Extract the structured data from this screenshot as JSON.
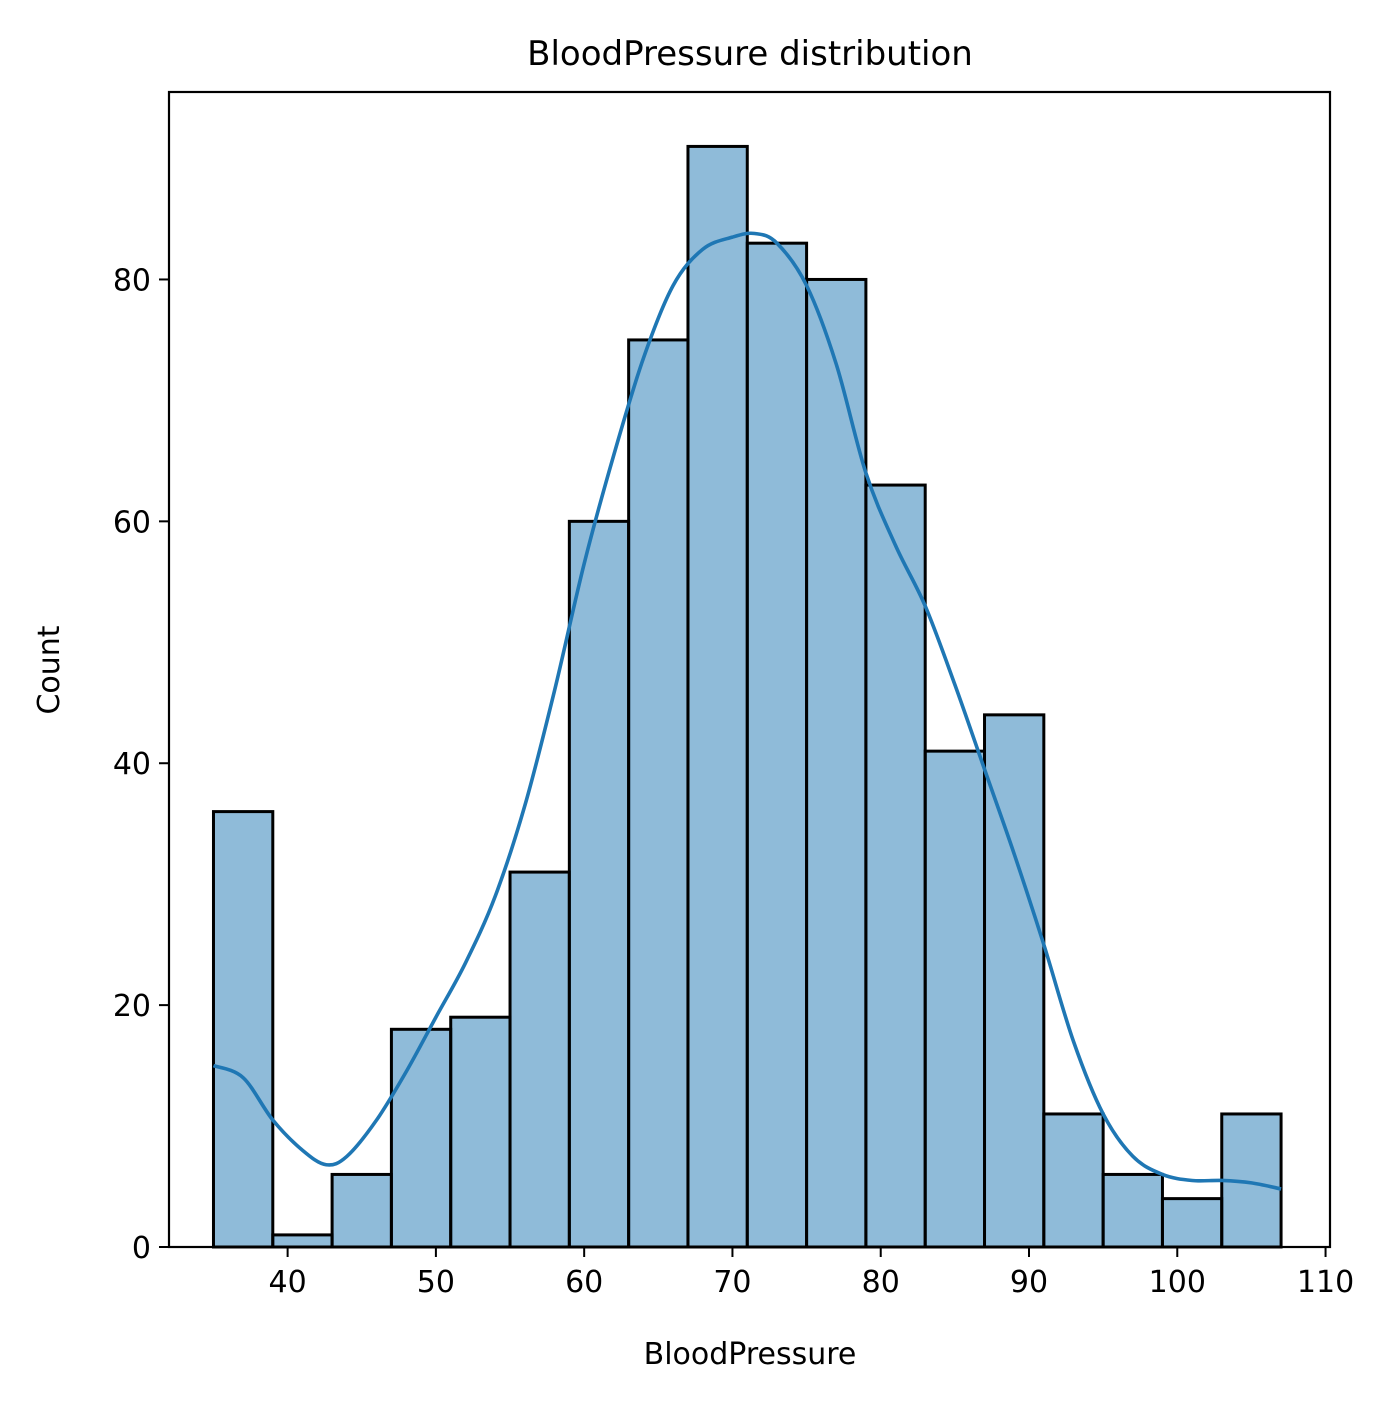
{
  "chart_data": {
    "type": "bar",
    "title": "BloodPressure distribution",
    "xlabel": "BloodPressure",
    "ylabel": "Count",
    "xlim": [
      32,
      110.3
    ],
    "ylim": [
      0,
      95.5
    ],
    "xticks": [
      40,
      50,
      60,
      70,
      80,
      90,
      100,
      110
    ],
    "yticks": [
      0,
      20,
      40,
      60,
      80
    ],
    "bar_color": "#1f77b4",
    "bar_opacity": 0.5,
    "kde_color": "#1f77b4",
    "bins": [
      {
        "x0": 35,
        "x1": 39,
        "count": 36
      },
      {
        "x0": 39,
        "x1": 43,
        "count": 1
      },
      {
        "x0": 43,
        "x1": 47,
        "count": 6
      },
      {
        "x0": 47,
        "x1": 51,
        "count": 18
      },
      {
        "x0": 51,
        "x1": 55,
        "count": 19
      },
      {
        "x0": 55,
        "x1": 59,
        "count": 31
      },
      {
        "x0": 59,
        "x1": 63,
        "count": 60
      },
      {
        "x0": 63,
        "x1": 67,
        "count": 75
      },
      {
        "x0": 67,
        "x1": 71,
        "count": 91
      },
      {
        "x0": 71,
        "x1": 75,
        "count": 83
      },
      {
        "x0": 75,
        "x1": 79,
        "count": 80
      },
      {
        "x0": 79,
        "x1": 83,
        "count": 63
      },
      {
        "x0": 83,
        "x1": 87,
        "count": 41
      },
      {
        "x0": 87,
        "x1": 91,
        "count": 44
      },
      {
        "x0": 91,
        "x1": 95,
        "count": 11
      },
      {
        "x0": 95,
        "x1": 99,
        "count": 6
      },
      {
        "x0": 99,
        "x1": 103,
        "count": 4
      },
      {
        "x0": 103,
        "x1": 107,
        "count": 11
      }
    ],
    "kde": {
      "x": [
        35,
        37,
        39,
        41,
        42.6,
        44,
        46,
        48,
        50,
        52,
        54,
        56,
        58,
        60,
        62,
        64,
        66,
        68,
        70,
        71.5,
        73,
        75,
        77,
        79,
        81,
        83,
        85,
        87,
        89,
        91,
        93,
        95,
        97,
        99,
        101,
        103,
        105,
        107
      ],
      "y": [
        15,
        14,
        10.5,
        8,
        6.8,
        7.5,
        10.5,
        14.5,
        19,
        23.5,
        29,
        36.5,
        46,
        56.5,
        65.5,
        73.5,
        79.5,
        82.5,
        83.5,
        83.8,
        83,
        79.5,
        73,
        64,
        58,
        53,
        46.5,
        39.5,
        32.5,
        25,
        17,
        11,
        7.5,
        6,
        5.5,
        5.5,
        5.3,
        4.8
      ]
    }
  }
}
